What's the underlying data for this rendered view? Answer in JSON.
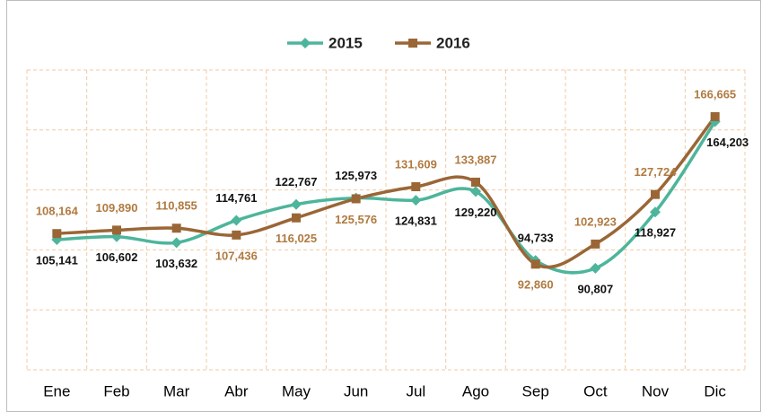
{
  "chart_data": {
    "type": "line",
    "categories": [
      "Ene",
      "Feb",
      "Mar",
      "Abr",
      "May",
      "Jun",
      "Jul",
      "Ago",
      "Sep",
      "Oct",
      "Nov",
      "Dic"
    ],
    "series": [
      {
        "name": "2015",
        "color": "#4db59b",
        "marker": "diamond",
        "label_color": "#111111",
        "values": [
          105141,
          106602,
          103632,
          114761,
          122767,
          125973,
          124831,
          129220,
          94733,
          90807,
          118927,
          164203
        ],
        "value_labels": [
          "105,141",
          "106,602",
          "103,632",
          "114,761",
          "122,767",
          "125,973",
          "124,831",
          "129,220",
          "94,733",
          "90,807",
          "118,927",
          "164,203"
        ]
      },
      {
        "name": "2016",
        "color": "#9a6636",
        "marker": "square",
        "label_color": "#b07a40",
        "values": [
          108164,
          109890,
          110855,
          107436,
          116025,
          125576,
          131609,
          133887,
          92860,
          102923,
          127724,
          166665
        ],
        "value_labels": [
          "108,164",
          "109,890",
          "110,855",
          "107,436",
          "116,025",
          "125,576",
          "131,609",
          "133,887",
          "92,860",
          "102,923",
          "127,724",
          "166,665"
        ]
      }
    ],
    "ylim": [
      40000,
      190000
    ],
    "yticks": [
      40000,
      70000,
      100000,
      130000,
      160000,
      190000
    ],
    "grid": true,
    "legend": "top",
    "smooth": true
  }
}
